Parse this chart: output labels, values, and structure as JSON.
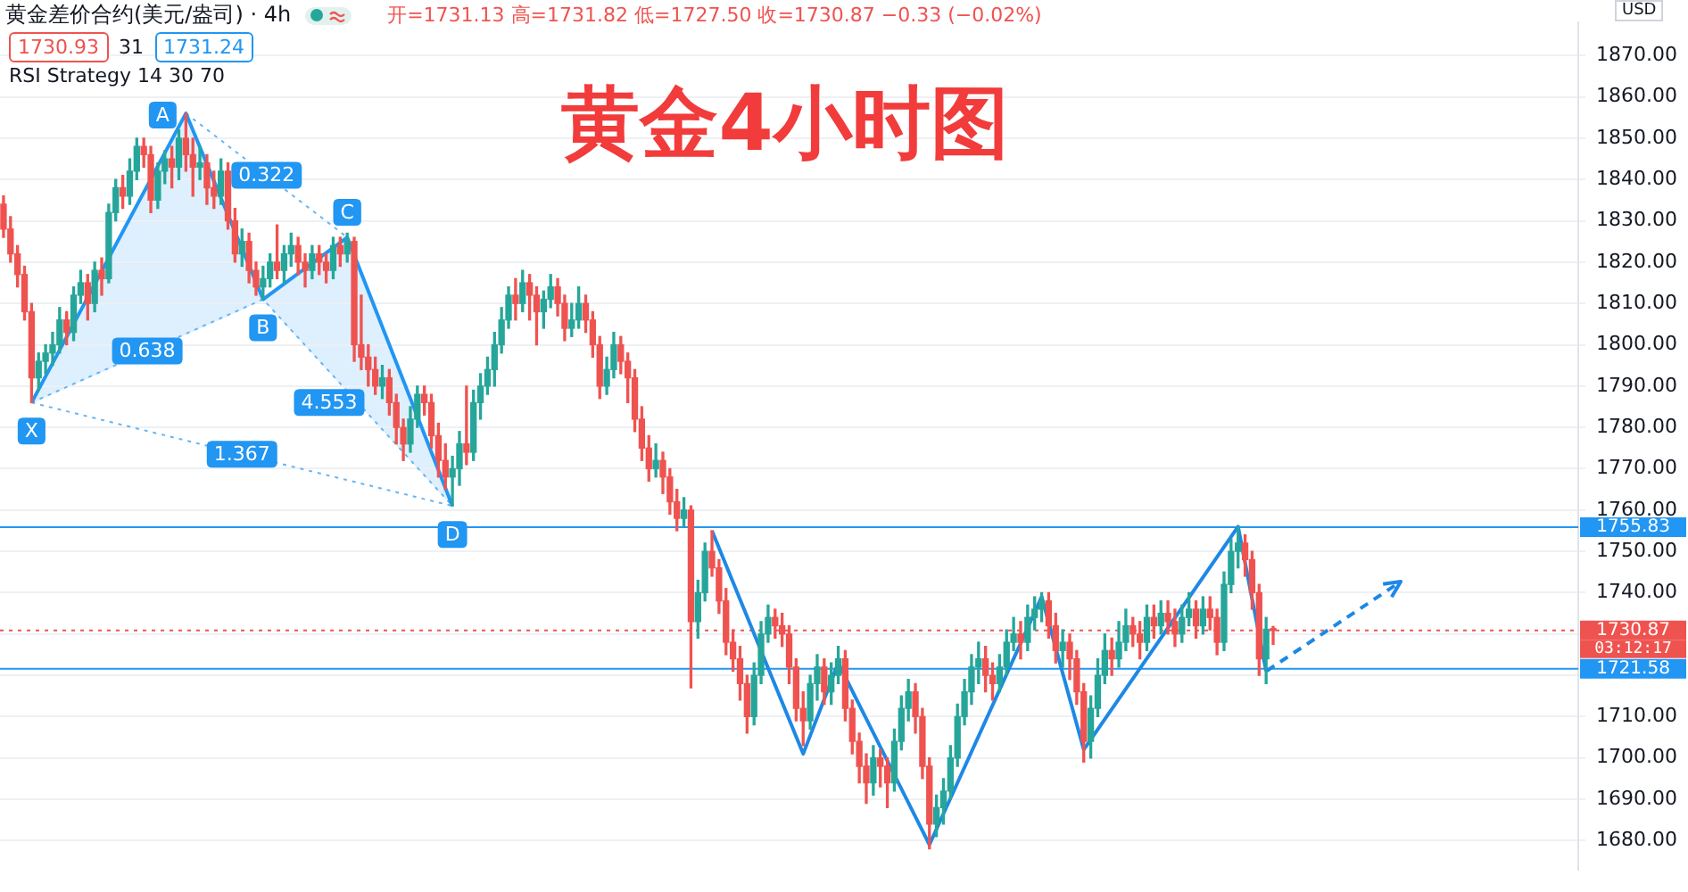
{
  "chart_data": {
    "type": "candlestick",
    "title": "黄金4小时图",
    "subtitle": "黄金差价合约(美元/盎司) · 4h",
    "annotations": [
      "开=1731.13 高=1731.82 低=1727.50 收=1730.87 −0.33 (−0.02%)",
      "1730.93",
      "31",
      "1731.24",
      "RSI Strategy 14 30 70",
      "USD",
      "X",
      "A",
      "B",
      "C",
      "D",
      "0.322",
      "0.638",
      "4.553",
      "1.367",
      "03:12:17"
    ],
    "categories": [
      null,
      null,
      null,
      null,
      null,
      null,
      null,
      null,
      null,
      null,
      null,
      null,
      null,
      null,
      null,
      null,
      null,
      null,
      null,
      null,
      null,
      null,
      null,
      null,
      null,
      null,
      null,
      null,
      null,
      null,
      null,
      null,
      null,
      null,
      null,
      null,
      null,
      null,
      null,
      null,
      null,
      null,
      null,
      null,
      null,
      null,
      null,
      null,
      null,
      null,
      null,
      null,
      null,
      null,
      null,
      null,
      null,
      null,
      null,
      null,
      null,
      null,
      null,
      null,
      null,
      null,
      null,
      null,
      null,
      null,
      null,
      null,
      null,
      null,
      null,
      null,
      null,
      null,
      null,
      null,
      null,
      null,
      null,
      null,
      null,
      null,
      null,
      null,
      null,
      null,
      null,
      null,
      null,
      null,
      null,
      null,
      null,
      null,
      null,
      null,
      null,
      null,
      null,
      null,
      null,
      null,
      null,
      null,
      null,
      null,
      null,
      null,
      null,
      null,
      null,
      null,
      null,
      null,
      null,
      null,
      null,
      null,
      null,
      null,
      null,
      null,
      null,
      null,
      null,
      null,
      null,
      null,
      null,
      null,
      null,
      null,
      null,
      null,
      null,
      null,
      null,
      null,
      null,
      null,
      null,
      null,
      null,
      null,
      null,
      null,
      null,
      null,
      null,
      null,
      null,
      null,
      null,
      null,
      null,
      null,
      null,
      null,
      null,
      null,
      null,
      null,
      null,
      null,
      null,
      null,
      null,
      null,
      null,
      null,
      null,
      null,
      null,
      null,
      null,
      null,
      null,
      null,
      null,
      null,
      null,
      null,
      null,
      null,
      null,
      null,
      null,
      null,
      null,
      null,
      null,
      null,
      null,
      null,
      null,
      null,
      null,
      null,
      null,
      null,
      null,
      null,
      null,
      null,
      null,
      null,
      null,
      null,
      null,
      null,
      null,
      null,
      null,
      null,
      null,
      null,
      null,
      null,
      null,
      null,
      null
    ],
    "ohlc": [
      [
        1834,
        1836,
        1826,
        1828
      ],
      [
        1828,
        1831,
        1820,
        1822
      ],
      [
        1822,
        1824,
        1814,
        1817
      ],
      [
        1817,
        1819,
        1806,
        1808
      ],
      [
        1808,
        1810,
        1786,
        1792
      ],
      [
        1792,
        1798,
        1789,
        1796
      ],
      [
        1796,
        1800,
        1793,
        1798
      ],
      [
        1798,
        1803,
        1795,
        1800
      ],
      [
        1800,
        1809,
        1798,
        1806
      ],
      [
        1806,
        1808,
        1800,
        1803
      ],
      [
        1803,
        1814,
        1801,
        1812
      ],
      [
        1812,
        1818,
        1810,
        1815
      ],
      [
        1815,
        1817,
        1806,
        1810
      ],
      [
        1810,
        1820,
        1808,
        1818
      ],
      [
        1818,
        1821,
        1812,
        1816
      ],
      [
        1816,
        1834,
        1815,
        1832
      ],
      [
        1832,
        1840,
        1830,
        1838
      ],
      [
        1838,
        1841,
        1833,
        1836
      ],
      [
        1836,
        1845,
        1834,
        1842
      ],
      [
        1842,
        1850,
        1840,
        1848
      ],
      [
        1848,
        1850,
        1843,
        1846
      ],
      [
        1846,
        1848,
        1832,
        1835
      ],
      [
        1835,
        1844,
        1833,
        1842
      ],
      [
        1842,
        1847,
        1839,
        1845
      ],
      [
        1845,
        1848,
        1838,
        1843
      ],
      [
        1843,
        1852,
        1840,
        1850
      ],
      [
        1850,
        1856,
        1842,
        1846
      ],
      [
        1846,
        1850,
        1836,
        1843
      ],
      [
        1843,
        1848,
        1840,
        1844
      ],
      [
        1844,
        1846,
        1834,
        1838
      ],
      [
        1838,
        1842,
        1833,
        1836
      ],
      [
        1836,
        1845,
        1834,
        1842
      ],
      [
        1842,
        1844,
        1828,
        1830
      ],
      [
        1830,
        1833,
        1820,
        1822
      ],
      [
        1822,
        1828,
        1819,
        1825
      ],
      [
        1825,
        1827,
        1815,
        1818
      ],
      [
        1818,
        1820,
        1812,
        1814
      ],
      [
        1814,
        1819,
        1811,
        1816
      ],
      [
        1816,
        1822,
        1814,
        1820
      ],
      [
        1820,
        1829,
        1816,
        1818
      ],
      [
        1818,
        1824,
        1815,
        1822
      ],
      [
        1822,
        1827,
        1819,
        1824
      ],
      [
        1824,
        1826,
        1817,
        1820
      ],
      [
        1820,
        1822,
        1814,
        1818
      ],
      [
        1818,
        1824,
        1816,
        1822
      ],
      [
        1822,
        1824,
        1817,
        1820
      ],
      [
        1820,
        1822,
        1815,
        1818
      ],
      [
        1818,
        1826,
        1816,
        1824
      ],
      [
        1824,
        1826,
        1819,
        1822
      ],
      [
        1822,
        1827,
        1820,
        1825
      ],
      [
        1825,
        1826,
        1796,
        1800
      ],
      [
        1800,
        1812,
        1794,
        1797
      ],
      [
        1797,
        1800,
        1790,
        1794
      ],
      [
        1794,
        1797,
        1788,
        1790
      ],
      [
        1790,
        1795,
        1787,
        1792
      ],
      [
        1792,
        1794,
        1783,
        1786
      ],
      [
        1786,
        1788,
        1776,
        1780
      ],
      [
        1780,
        1782,
        1772,
        1776
      ],
      [
        1776,
        1785,
        1774,
        1782
      ],
      [
        1782,
        1790,
        1780,
        1788
      ],
      [
        1788,
        1790,
        1783,
        1786
      ],
      [
        1786,
        1788,
        1775,
        1778
      ],
      [
        1778,
        1781,
        1768,
        1772
      ],
      [
        1772,
        1776,
        1765,
        1768
      ],
      [
        1768,
        1773,
        1761,
        1770
      ],
      [
        1770,
        1779,
        1766,
        1776
      ],
      [
        1776,
        1790,
        1771,
        1774
      ],
      [
        1774,
        1789,
        1772,
        1786
      ],
      [
        1786,
        1793,
        1782,
        1790
      ],
      [
        1790,
        1797,
        1788,
        1794
      ],
      [
        1794,
        1803,
        1790,
        1800
      ],
      [
        1800,
        1809,
        1798,
        1806
      ],
      [
        1806,
        1814,
        1804,
        1812
      ],
      [
        1812,
        1816,
        1806,
        1810
      ],
      [
        1810,
        1818,
        1808,
        1815
      ],
      [
        1815,
        1817,
        1806,
        1812
      ],
      [
        1812,
        1814,
        1800,
        1808
      ],
      [
        1808,
        1813,
        1804,
        1811
      ],
      [
        1811,
        1817,
        1809,
        1814
      ],
      [
        1814,
        1816,
        1807,
        1810
      ],
      [
        1810,
        1812,
        1801,
        1804
      ],
      [
        1804,
        1810,
        1802,
        1806
      ],
      [
        1806,
        1814,
        1804,
        1810
      ],
      [
        1810,
        1812,
        1803,
        1806
      ],
      [
        1806,
        1808,
        1797,
        1800
      ],
      [
        1800,
        1802,
        1787,
        1790
      ],
      [
        1790,
        1797,
        1788,
        1794
      ],
      [
        1794,
        1803,
        1792,
        1800
      ],
      [
        1800,
        1802,
        1793,
        1796
      ],
      [
        1796,
        1798,
        1786,
        1792
      ],
      [
        1792,
        1794,
        1779,
        1782
      ],
      [
        1782,
        1785,
        1772,
        1775
      ],
      [
        1775,
        1778,
        1767,
        1770
      ],
      [
        1770,
        1776,
        1768,
        1772
      ],
      [
        1772,
        1774,
        1764,
        1768
      ],
      [
        1768,
        1770,
        1759,
        1762
      ],
      [
        1762,
        1765,
        1755,
        1758
      ],
      [
        1758,
        1763,
        1756,
        1760
      ],
      [
        1760,
        1761,
        1717,
        1733
      ],
      [
        1733,
        1743,
        1729,
        1740
      ],
      [
        1740,
        1752,
        1738,
        1750
      ],
      [
        1750,
        1755,
        1744,
        1746
      ],
      [
        1746,
        1748,
        1735,
        1738
      ],
      [
        1738,
        1741,
        1725,
        1728
      ],
      [
        1728,
        1731,
        1721,
        1724
      ],
      [
        1724,
        1727,
        1714,
        1718
      ],
      [
        1718,
        1720,
        1706,
        1710
      ],
      [
        1710,
        1723,
        1708,
        1720
      ],
      [
        1720,
        1733,
        1718,
        1730
      ],
      [
        1730,
        1737,
        1728,
        1734
      ],
      [
        1734,
        1736,
        1729,
        1732
      ],
      [
        1732,
        1735,
        1727,
        1730
      ],
      [
        1730,
        1732,
        1718,
        1722
      ],
      [
        1722,
        1724,
        1709,
        1712
      ],
      [
        1712,
        1716,
        1703,
        1709
      ],
      [
        1709,
        1720,
        1707,
        1718
      ],
      [
        1718,
        1725,
        1714,
        1722
      ],
      [
        1722,
        1724,
        1713,
        1716
      ],
      [
        1716,
        1723,
        1713,
        1720
      ],
      [
        1720,
        1727,
        1718,
        1724
      ],
      [
        1724,
        1726,
        1709,
        1712
      ],
      [
        1712,
        1714,
        1701,
        1704
      ],
      [
        1704,
        1706,
        1694,
        1698
      ],
      [
        1698,
        1701,
        1689,
        1694
      ],
      [
        1694,
        1703,
        1691,
        1700
      ],
      [
        1700,
        1702,
        1693,
        1698
      ],
      [
        1698,
        1700,
        1688,
        1694
      ],
      [
        1694,
        1707,
        1692,
        1704
      ],
      [
        1704,
        1715,
        1702,
        1712
      ],
      [
        1712,
        1719,
        1709,
        1716
      ],
      [
        1716,
        1718,
        1706,
        1710
      ],
      [
        1710,
        1712,
        1695,
        1698
      ],
      [
        1698,
        1700,
        1678,
        1684
      ],
      [
        1684,
        1691,
        1681,
        1688
      ],
      [
        1688,
        1695,
        1684,
        1692
      ],
      [
        1692,
        1703,
        1690,
        1700
      ],
      [
        1700,
        1713,
        1698,
        1710
      ],
      [
        1710,
        1719,
        1708,
        1716
      ],
      [
        1716,
        1725,
        1713,
        1722
      ],
      [
        1722,
        1728,
        1718,
        1724
      ],
      [
        1724,
        1727,
        1716,
        1720
      ],
      [
        1720,
        1723,
        1714,
        1718
      ],
      [
        1718,
        1725,
        1716,
        1722
      ],
      [
        1722,
        1731,
        1720,
        1728
      ],
      [
        1728,
        1734,
        1726,
        1730
      ],
      [
        1730,
        1733,
        1724,
        1728
      ],
      [
        1728,
        1737,
        1726,
        1734
      ],
      [
        1734,
        1739,
        1731,
        1736
      ],
      [
        1736,
        1740,
        1733,
        1738
      ],
      [
        1738,
        1740,
        1729,
        1732
      ],
      [
        1732,
        1735,
        1723,
        1726
      ],
      [
        1726,
        1731,
        1722,
        1728
      ],
      [
        1728,
        1730,
        1719,
        1724
      ],
      [
        1724,
        1726,
        1713,
        1716
      ],
      [
        1716,
        1718,
        1699,
        1704
      ],
      [
        1704,
        1715,
        1700,
        1712
      ],
      [
        1712,
        1724,
        1710,
        1720
      ],
      [
        1720,
        1730,
        1718,
        1726
      ],
      [
        1726,
        1729,
        1720,
        1724
      ],
      [
        1724,
        1733,
        1722,
        1728
      ],
      [
        1728,
        1736,
        1726,
        1732
      ],
      [
        1732,
        1734,
        1727,
        1730
      ],
      [
        1730,
        1733,
        1724,
        1728
      ],
      [
        1728,
        1737,
        1726,
        1734
      ],
      [
        1734,
        1737,
        1729,
        1732
      ],
      [
        1732,
        1738,
        1730,
        1735
      ],
      [
        1735,
        1738,
        1730,
        1733
      ],
      [
        1733,
        1736,
        1727,
        1730
      ],
      [
        1730,
        1737,
        1728,
        1734
      ],
      [
        1734,
        1740,
        1732,
        1736
      ],
      [
        1736,
        1738,
        1729,
        1732
      ],
      [
        1732,
        1739,
        1730,
        1736
      ],
      [
        1736,
        1739,
        1731,
        1734
      ],
      [
        1734,
        1736,
        1725,
        1728
      ],
      [
        1728,
        1745,
        1726,
        1742
      ],
      [
        1742,
        1753,
        1740,
        1750
      ],
      [
        1750,
        1756,
        1746,
        1752
      ],
      [
        1752,
        1754,
        1744,
        1748
      ],
      [
        1748,
        1750,
        1736,
        1740
      ],
      [
        1740,
        1742,
        1720,
        1724
      ],
      [
        1724,
        1734,
        1718,
        1731.13
      ],
      [
        1731.13,
        1731.82,
        1727.5,
        1730.87
      ],
      null,
      null,
      null,
      null,
      null,
      null,
      null,
      null,
      null,
      null,
      null,
      null,
      null,
      null,
      null,
      null,
      null,
      null,
      null,
      null,
      null,
      null,
      null,
      null,
      null,
      null,
      null,
      null,
      null,
      null,
      null,
      null,
      null,
      null,
      null,
      null,
      null,
      null,
      null,
      null,
      null,
      null,
      null
    ],
    "series": [
      {
        "type": "line",
        "color": "#2196f3",
        "line_style": "solid",
        "values": [
          null,
          null,
          null,
          null,
          1786,
          null,
          null,
          null,
          null,
          null,
          null,
          null,
          null,
          null,
          null,
          null,
          null,
          null,
          null,
          null,
          null,
          null,
          null,
          null,
          null,
          null,
          1856,
          null,
          null,
          null,
          null,
          null,
          null,
          null,
          null,
          null,
          null,
          1811,
          null,
          null,
          null,
          null,
          null,
          null,
          null,
          null,
          null,
          null,
          null,
          1826,
          null,
          null,
          null,
          null,
          null,
          null,
          null,
          null,
          null,
          null,
          null,
          null,
          null,
          null,
          1761,
          null,
          null,
          null,
          null,
          null,
          null,
          null,
          null,
          null,
          null,
          null,
          null,
          null,
          null,
          null,
          null,
          null,
          null,
          null,
          null,
          null,
          null,
          null,
          null,
          null,
          null,
          null,
          null,
          null,
          null,
          null,
          null,
          null,
          null,
          null,
          null,
          null,
          null,
          null,
          null,
          null,
          null,
          null,
          null,
          null,
          null,
          null,
          null,
          null,
          null,
          null,
          null,
          null,
          null,
          null,
          null,
          null,
          null,
          null,
          null,
          null,
          null,
          null,
          null,
          null,
          null,
          null,
          null,
          null,
          null,
          null,
          null,
          null,
          null,
          null,
          null,
          null,
          null,
          null,
          null,
          null,
          null,
          null,
          null,
          null,
          null,
          null,
          null,
          null,
          null,
          null,
          null,
          null,
          null,
          null,
          null,
          null,
          null,
          null,
          null,
          null,
          null,
          null,
          null,
          null,
          null,
          null,
          null,
          null,
          null,
          null,
          null,
          null,
          null,
          null,
          null,
          null,
          null,
          null,
          null,
          null,
          null,
          null,
          null,
          null,
          null,
          null,
          null,
          null,
          null,
          null,
          null,
          null,
          null,
          null,
          null,
          null,
          null,
          null,
          null,
          null,
          null,
          null,
          null,
          null,
          null,
          null,
          null,
          null,
          null,
          null,
          null,
          null,
          null,
          null,
          null,
          null,
          null,
          null,
          null
        ]
      },
      {
        "type": "line",
        "color": "#64b5f6",
        "line_style": "dotted",
        "values": [
          null,
          null,
          null,
          null,
          1786,
          null,
          null,
          null,
          null,
          null,
          null,
          null,
          null,
          null,
          null,
          null,
          null,
          null,
          null,
          null,
          null,
          null,
          null,
          null,
          null,
          null,
          null,
          null,
          null,
          null,
          null,
          null,
          null,
          null,
          null,
          null,
          null,
          1811,
          null,
          null,
          null,
          null,
          null,
          null,
          null,
          null,
          null,
          null,
          null,
          null,
          null,
          null,
          null,
          null,
          null,
          null,
          null,
          null,
          null,
          null,
          null,
          null,
          null,
          null,
          1761,
          null,
          null,
          null,
          null,
          null,
          null,
          null,
          null,
          null,
          null,
          null,
          null,
          null,
          null,
          null,
          null,
          null,
          null,
          null,
          null,
          null,
          null,
          null,
          null,
          null,
          null,
          null,
          null,
          null,
          null,
          null,
          null,
          null,
          null,
          null,
          null,
          null,
          null,
          null,
          null,
          null,
          null,
          null,
          null,
          null,
          null,
          null,
          null,
          null,
          null,
          null,
          null,
          null,
          null,
          null,
          null,
          null,
          null,
          null,
          null,
          null,
          null,
          null,
          null,
          null,
          null,
          null,
          null,
          null,
          null,
          null,
          null,
          null,
          null,
          null,
          null,
          null,
          null,
          null,
          null,
          null,
          null,
          null,
          null,
          null,
          null,
          null,
          null,
          null,
          null,
          null,
          null,
          null,
          null,
          null,
          null,
          null,
          null,
          null,
          null,
          null,
          null,
          null,
          null,
          null,
          null,
          null,
          null,
          null,
          null,
          null,
          null,
          null,
          null,
          null,
          null,
          null,
          null,
          null,
          null,
          null,
          null,
          null,
          null,
          null,
          null,
          null,
          null,
          null,
          null,
          null,
          null,
          null,
          null,
          null,
          null,
          null,
          null,
          null,
          null,
          null,
          null,
          null,
          null,
          null,
          null,
          null,
          null,
          null,
          null,
          null,
          null,
          null,
          null,
          null,
          null,
          null,
          null,
          null,
          null
        ]
      },
      {
        "type": "line",
        "color": "#64b5f6",
        "line_style": "dotted",
        "values": [
          null,
          null,
          null,
          null,
          null,
          null,
          null,
          null,
          null,
          null,
          null,
          null,
          null,
          null,
          null,
          null,
          null,
          null,
          null,
          null,
          null,
          null,
          null,
          null,
          null,
          null,
          1856,
          null,
          null,
          null,
          null,
          null,
          null,
          null,
          null,
          null,
          null,
          null,
          null,
          null,
          null,
          null,
          null,
          null,
          null,
          null,
          null,
          null,
          null,
          1826,
          null,
          null,
          null,
          null,
          null,
          null,
          null,
          null,
          null,
          null,
          null,
          null,
          null,
          null,
          null,
          null,
          null,
          null,
          null,
          null,
          null,
          null,
          null,
          null,
          null,
          null,
          null,
          null,
          null,
          null,
          null,
          null,
          null,
          null,
          null,
          null,
          null,
          null,
          null,
          null,
          null,
          null,
          null,
          null,
          null,
          null,
          null,
          null,
          null,
          null,
          null,
          null,
          null,
          null,
          null,
          null,
          null,
          null,
          null,
          null,
          null,
          null,
          null,
          null,
          null,
          null,
          null,
          null,
          null,
          null,
          null,
          null,
          null,
          null,
          null,
          null,
          null,
          null,
          null,
          null,
          null,
          null,
          null,
          null,
          null,
          null,
          null,
          null,
          null,
          null,
          null,
          null,
          null,
          null,
          null,
          null,
          null,
          null,
          null,
          null,
          null,
          null,
          null,
          null,
          null,
          null,
          null,
          null,
          null,
          null,
          null,
          null,
          null,
          null,
          null,
          null,
          null,
          null,
          null,
          null,
          null,
          null,
          null,
          null,
          null,
          null,
          null,
          null,
          null,
          null,
          null,
          null,
          null,
          null,
          null,
          null,
          null,
          null,
          null,
          null,
          null,
          null,
          null,
          null,
          null,
          null,
          null,
          null,
          null,
          null,
          null,
          null,
          null,
          null,
          null,
          null,
          null,
          null,
          null,
          null,
          null,
          null,
          null,
          null,
          null,
          null,
          null,
          null,
          null,
          null,
          null,
          null,
          null,
          null,
          null
        ]
      },
      {
        "type": "line",
        "color": "#64b5f6",
        "line_style": "dotted",
        "values": [
          null,
          null,
          null,
          null,
          1786,
          null,
          null,
          null,
          null,
          null,
          null,
          null,
          null,
          null,
          null,
          null,
          null,
          null,
          null,
          null,
          null,
          null,
          null,
          null,
          null,
          null,
          null,
          null,
          null,
          null,
          null,
          null,
          null,
          null,
          null,
          null,
          null,
          null,
          null,
          null,
          null,
          null,
          null,
          null,
          null,
          null,
          null,
          null,
          null,
          null,
          null,
          null,
          null,
          null,
          null,
          null,
          null,
          null,
          null,
          null,
          null,
          null,
          null,
          null,
          1761,
          null,
          null,
          null,
          null,
          null,
          null,
          null,
          null,
          null,
          null,
          null,
          null,
          null,
          null,
          null,
          null,
          null,
          null,
          null,
          null,
          null,
          null,
          null,
          null,
          null,
          null,
          null,
          null,
          null,
          null,
          null,
          null,
          null,
          null,
          null,
          null,
          null,
          null,
          null,
          null,
          null,
          null,
          null,
          null,
          null,
          null,
          null,
          null,
          null,
          null,
          null,
          null,
          null,
          null,
          null,
          null,
          null,
          null,
          null,
          null,
          null,
          null,
          null,
          null,
          null,
          null,
          null,
          null,
          null,
          null,
          null,
          null,
          null,
          null,
          null,
          null,
          null,
          null,
          null,
          null,
          null,
          null,
          null,
          null,
          null,
          null,
          null,
          null,
          null,
          null,
          null,
          null,
          null,
          null,
          null,
          null,
          null,
          null,
          null,
          null,
          null,
          null,
          null,
          null,
          null,
          null,
          null,
          null,
          null,
          null,
          null,
          null,
          null,
          null,
          null,
          null,
          null,
          null,
          null,
          null,
          null,
          null,
          null,
          null,
          null,
          null,
          null,
          null,
          null,
          null,
          null,
          null,
          null,
          null,
          null,
          null,
          null,
          null,
          null,
          null,
          null,
          null,
          null,
          null,
          null,
          null,
          null,
          null,
          null,
          null,
          null,
          null,
          null,
          null,
          null,
          null,
          null,
          null,
          null,
          null
        ]
      },
      {
        "type": "line",
        "color": "#1e88e5",
        "line_style": "solid",
        "values": [
          null,
          null,
          null,
          null,
          null,
          null,
          null,
          null,
          null,
          null,
          null,
          null,
          null,
          null,
          null,
          null,
          null,
          null,
          null,
          null,
          null,
          null,
          null,
          null,
          null,
          null,
          null,
          null,
          null,
          null,
          null,
          null,
          null,
          null,
          null,
          null,
          null,
          null,
          null,
          null,
          null,
          null,
          null,
          null,
          null,
          null,
          null,
          null,
          null,
          null,
          null,
          null,
          null,
          null,
          null,
          null,
          null,
          null,
          null,
          null,
          null,
          null,
          null,
          null,
          null,
          null,
          null,
          null,
          null,
          null,
          null,
          null,
          null,
          null,
          null,
          null,
          null,
          null,
          null,
          null,
          null,
          null,
          null,
          null,
          null,
          null,
          null,
          null,
          null,
          null,
          null,
          null,
          null,
          null,
          null,
          null,
          null,
          null,
          null,
          null,
          null,
          1755,
          null,
          null,
          null,
          null,
          null,
          null,
          null,
          null,
          null,
          null,
          null,
          null,
          1701,
          null,
          null,
          null,
          null,
          1723,
          null,
          null,
          null,
          null,
          null,
          null,
          null,
          null,
          null,
          null,
          null,
          null,
          1679,
          null,
          null,
          null,
          null,
          null,
          null,
          null,
          null,
          null,
          null,
          null,
          null,
          null,
          null,
          null,
          1739,
          null,
          null,
          null,
          null,
          null,
          1702,
          null,
          null,
          null,
          null,
          null,
          null,
          null,
          null,
          null,
          null,
          null,
          null,
          null,
          null,
          null,
          null,
          null,
          null,
          null,
          null,
          null,
          1756,
          null,
          null,
          null,
          1721,
          null,
          null,
          null,
          null,
          null,
          null,
          null,
          null,
          null,
          null,
          null,
          null,
          null,
          null,
          null,
          null,
          null,
          null,
          null,
          null,
          null,
          null,
          null,
          null,
          null,
          null,
          null,
          null,
          null,
          null,
          null,
          null,
          null,
          null,
          null,
          null,
          null,
          null,
          null,
          null,
          null,
          null,
          null,
          null
        ]
      }
    ],
    "ref_lines": [
      {
        "axis": "y",
        "value": 1755.83,
        "label": "1755.83",
        "color": "#2196f3",
        "line_style": "solid"
      },
      {
        "axis": "y",
        "value": 1721.58,
        "label": "1721.58",
        "color": "#2196f3",
        "line_style": "solid"
      },
      {
        "axis": "y",
        "value": 1730.87,
        "label": "1730.87",
        "color": "#ef5350",
        "line_style": "dotted"
      }
    ],
    "ylim": [
      1673,
      1878
    ],
    "yticks": [
      {
        "value": 1680,
        "label": "1680.00"
      },
      {
        "value": 1690,
        "label": "1690.00"
      },
      {
        "value": 1700,
        "label": "1700.00"
      },
      {
        "value": 1710,
        "label": "1710.00"
      },
      {
        "value": 1720,
        "label": null
      },
      {
        "value": 1730,
        "label": null
      },
      {
        "value": 1740,
        "label": "1740.00"
      },
      {
        "value": 1750,
        "label": "1750.00"
      },
      {
        "value": 1760,
        "label": "1760.00"
      },
      {
        "value": 1770,
        "label": "1770.00"
      },
      {
        "value": 1780,
        "label": "1780.00"
      },
      {
        "value": 1790,
        "label": "1790.00"
      },
      {
        "value": 1800,
        "label": "1800.00"
      },
      {
        "value": 1810,
        "label": "1810.00"
      },
      {
        "value": 1820,
        "label": "1820.00"
      },
      {
        "value": 1830,
        "label": "1830.00"
      },
      {
        "value": 1840,
        "label": "1840.00"
      },
      {
        "value": 1850,
        "label": "1850.00"
      },
      {
        "value": 1860,
        "label": "1860.00"
      },
      {
        "value": 1870,
        "label": "1870.00"
      }
    ],
    "grid": "y",
    "tick_labels": "y"
  }
}
